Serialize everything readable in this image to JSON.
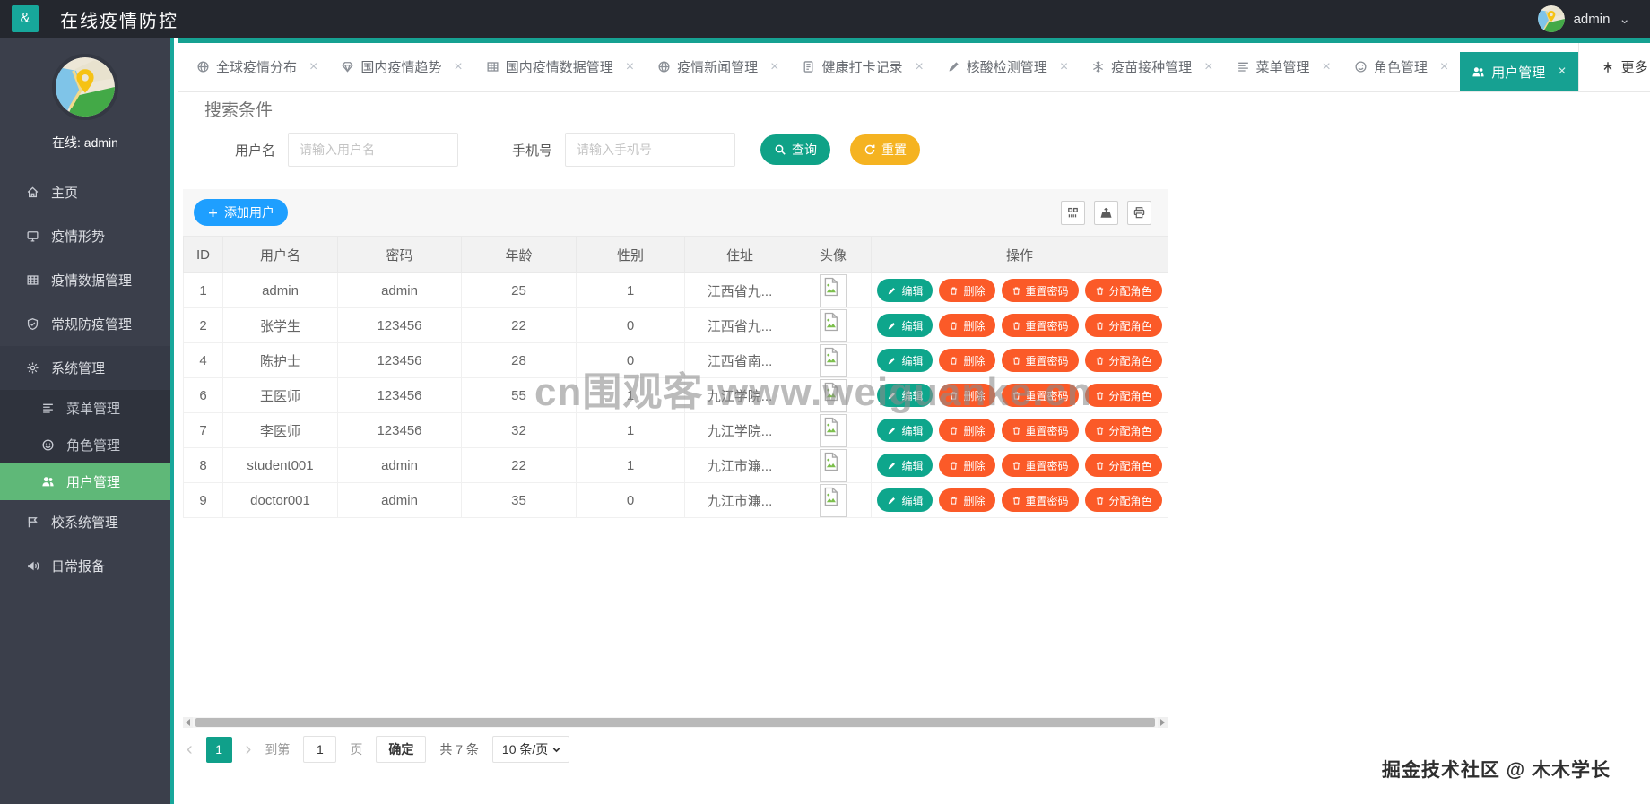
{
  "header": {
    "brand_glyph": "&",
    "title": "在线疫情防控",
    "user": "admin"
  },
  "sidebar": {
    "online_text": "在线: admin",
    "items": [
      {
        "slug": "home",
        "icon": "home",
        "label": "主页"
      },
      {
        "slug": "epidemic-situation",
        "icon": "monitor",
        "label": "疫情形势"
      },
      {
        "slug": "epidemic-data",
        "icon": "table",
        "label": "疫情数据管理"
      },
      {
        "slug": "routine-prevention",
        "icon": "shield",
        "label": "常规防疫管理"
      },
      {
        "slug": "system",
        "icon": "gear",
        "label": "系统管理",
        "expanded": true,
        "children": [
          {
            "slug": "menu",
            "icon": "list",
            "label": "菜单管理"
          },
          {
            "slug": "role",
            "icon": "smiley",
            "label": "角色管理"
          },
          {
            "slug": "user",
            "icon": "users",
            "label": "用户管理",
            "active": true
          }
        ]
      },
      {
        "slug": "school-system",
        "icon": "flag",
        "label": "校系统管理"
      },
      {
        "slug": "daily-report",
        "icon": "horn",
        "label": "日常报备"
      }
    ]
  },
  "tabs": [
    {
      "slug": "global-distribution",
      "icon": "globe",
      "label": "全球疫情分布"
    },
    {
      "slug": "domestic-trend",
      "icon": "diamond",
      "label": "国内疫情趋势"
    },
    {
      "slug": "domestic-data",
      "icon": "table",
      "label": "国内疫情数据管理"
    },
    {
      "slug": "news",
      "icon": "globe",
      "label": "疫情新闻管理"
    },
    {
      "slug": "health-checkin",
      "icon": "doc",
      "label": "健康打卡记录"
    },
    {
      "slug": "nucleic-acid",
      "icon": "pen",
      "label": "核酸检测管理"
    },
    {
      "slug": "vaccine",
      "icon": "snow",
      "label": "疫苗接种管理"
    },
    {
      "slug": "menu",
      "icon": "list",
      "label": "菜单管理"
    },
    {
      "slug": "role",
      "icon": "smiley",
      "label": "角色管理"
    },
    {
      "slug": "user",
      "icon": "users",
      "label": "用户管理",
      "active": true
    }
  ],
  "more_label": "更多",
  "search": {
    "legend": "搜索条件",
    "username_label": "用户名",
    "username_placeholder": "请输入用户名",
    "phone_label": "手机号",
    "phone_placeholder": "请输入手机号",
    "query_label": "查询",
    "reset_label": "重置"
  },
  "table": {
    "add_button": "添加用户",
    "columns": [
      "ID",
      "用户名",
      "密码",
      "年龄",
      "性别",
      "住址",
      "头像",
      "操作"
    ],
    "actions": [
      "编辑",
      "删除",
      "重置密码",
      "分配角色"
    ],
    "rows": [
      {
        "id": "1",
        "username": "admin",
        "password": "admin",
        "age": "25",
        "gender": "1",
        "address": "江西省九..."
      },
      {
        "id": "2",
        "username": "张学生",
        "password": "123456",
        "age": "22",
        "gender": "0",
        "address": "江西省九..."
      },
      {
        "id": "4",
        "username": "陈护士",
        "password": "123456",
        "age": "28",
        "gender": "0",
        "address": "江西省南..."
      },
      {
        "id": "6",
        "username": "王医师",
        "password": "123456",
        "age": "55",
        "gender": "1",
        "address": "九江学院..."
      },
      {
        "id": "7",
        "username": "李医师",
        "password": "123456",
        "age": "32",
        "gender": "1",
        "address": "九江学院..."
      },
      {
        "id": "8",
        "username": "student001",
        "password": "admin",
        "age": "22",
        "gender": "1",
        "address": "九江市濂..."
      },
      {
        "id": "9",
        "username": "doctor001",
        "password": "admin",
        "age": "35",
        "gender": "0",
        "address": "九江市濂..."
      }
    ]
  },
  "pagination": {
    "prev": "‹",
    "page": "1",
    "next": "›",
    "goto_label": "到第",
    "goto_value": "1",
    "page_label": "页",
    "confirm_label": "确定",
    "total_label": "共 7 条",
    "per_page": "10 条/页"
  },
  "watermarks": {
    "center": "cn围观客:www.weiguanke.cn",
    "bottom_right": "掘金技术社区 @ 木木学长"
  },
  "colors": {
    "header_bg": "#24272E",
    "sidebar_bg": "#3B3F4B",
    "teal": "#16A192",
    "active_green": "#5FB878",
    "query_teal": "#0FA287",
    "reset_amber": "#F5B321",
    "add_blue": "#1E9FFF",
    "edit_teal": "#0EA68C",
    "danger_orange": "#FB5A28",
    "pager_teal": "#10A08A"
  }
}
